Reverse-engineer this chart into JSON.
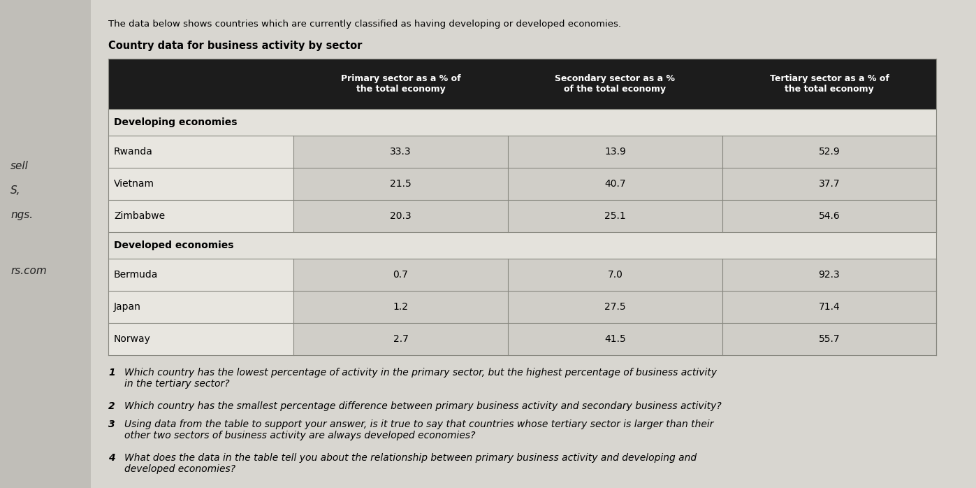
{
  "intro_text": "The data below shows countries which are currently classified as having developing or developed economies.",
  "table_title": "Country data for business activity by sector",
  "col_headers": [
    "",
    "Primary sector as a % of\nthe total economy",
    "Secondary sector as a %\nof the total economy",
    "Tertiary sector as a % of\nthe total economy"
  ],
  "section1_label": "Developing economies",
  "section2_label": "Developed economies",
  "rows": [
    [
      "Rwanda",
      "33.3",
      "13.9",
      "52.9"
    ],
    [
      "Vietnam",
      "21.5",
      "40.7",
      "37.7"
    ],
    [
      "Zimbabwe",
      "20.3",
      "25.1",
      "54.6"
    ],
    [
      "Bermuda",
      "0.7",
      "7.0",
      "92.3"
    ],
    [
      "Japan",
      "1.2",
      "27.5",
      "71.4"
    ],
    [
      "Norway",
      "2.7",
      "41.5",
      "55.7"
    ]
  ],
  "questions": [
    [
      "1",
      "Which country has the lowest percentage of activity in the primary sector, but the highest percentage of business activity\nin the tertiary sector?"
    ],
    [
      "2",
      "Which country has the smallest percentage difference between primary business activity and secondary business activity?"
    ],
    [
      "3",
      "Using data from the table to support your answer, is it true to say that countries whose tertiary sector is larger than their\nother two sectors of business activity are always developed economies?"
    ],
    [
      "4",
      "What does the data in the table tell you about the relationship between primary business activity and developing and\ndeveloped economies?"
    ]
  ],
  "header_bg": "#1c1c1c",
  "header_text_color": "#ffffff",
  "page_bg": "#b8b8b8",
  "paper_bg": "#d8d6d0",
  "table_bg_data_col0": "#e8e6e0",
  "table_bg_data_cols": "#d0cec8",
  "table_bg_section": "#e4e2dc",
  "border_color": "#888880",
  "text_color": "#111111",
  "left_bar_bg": "#c0beb8",
  "left_text_color": "#222222"
}
